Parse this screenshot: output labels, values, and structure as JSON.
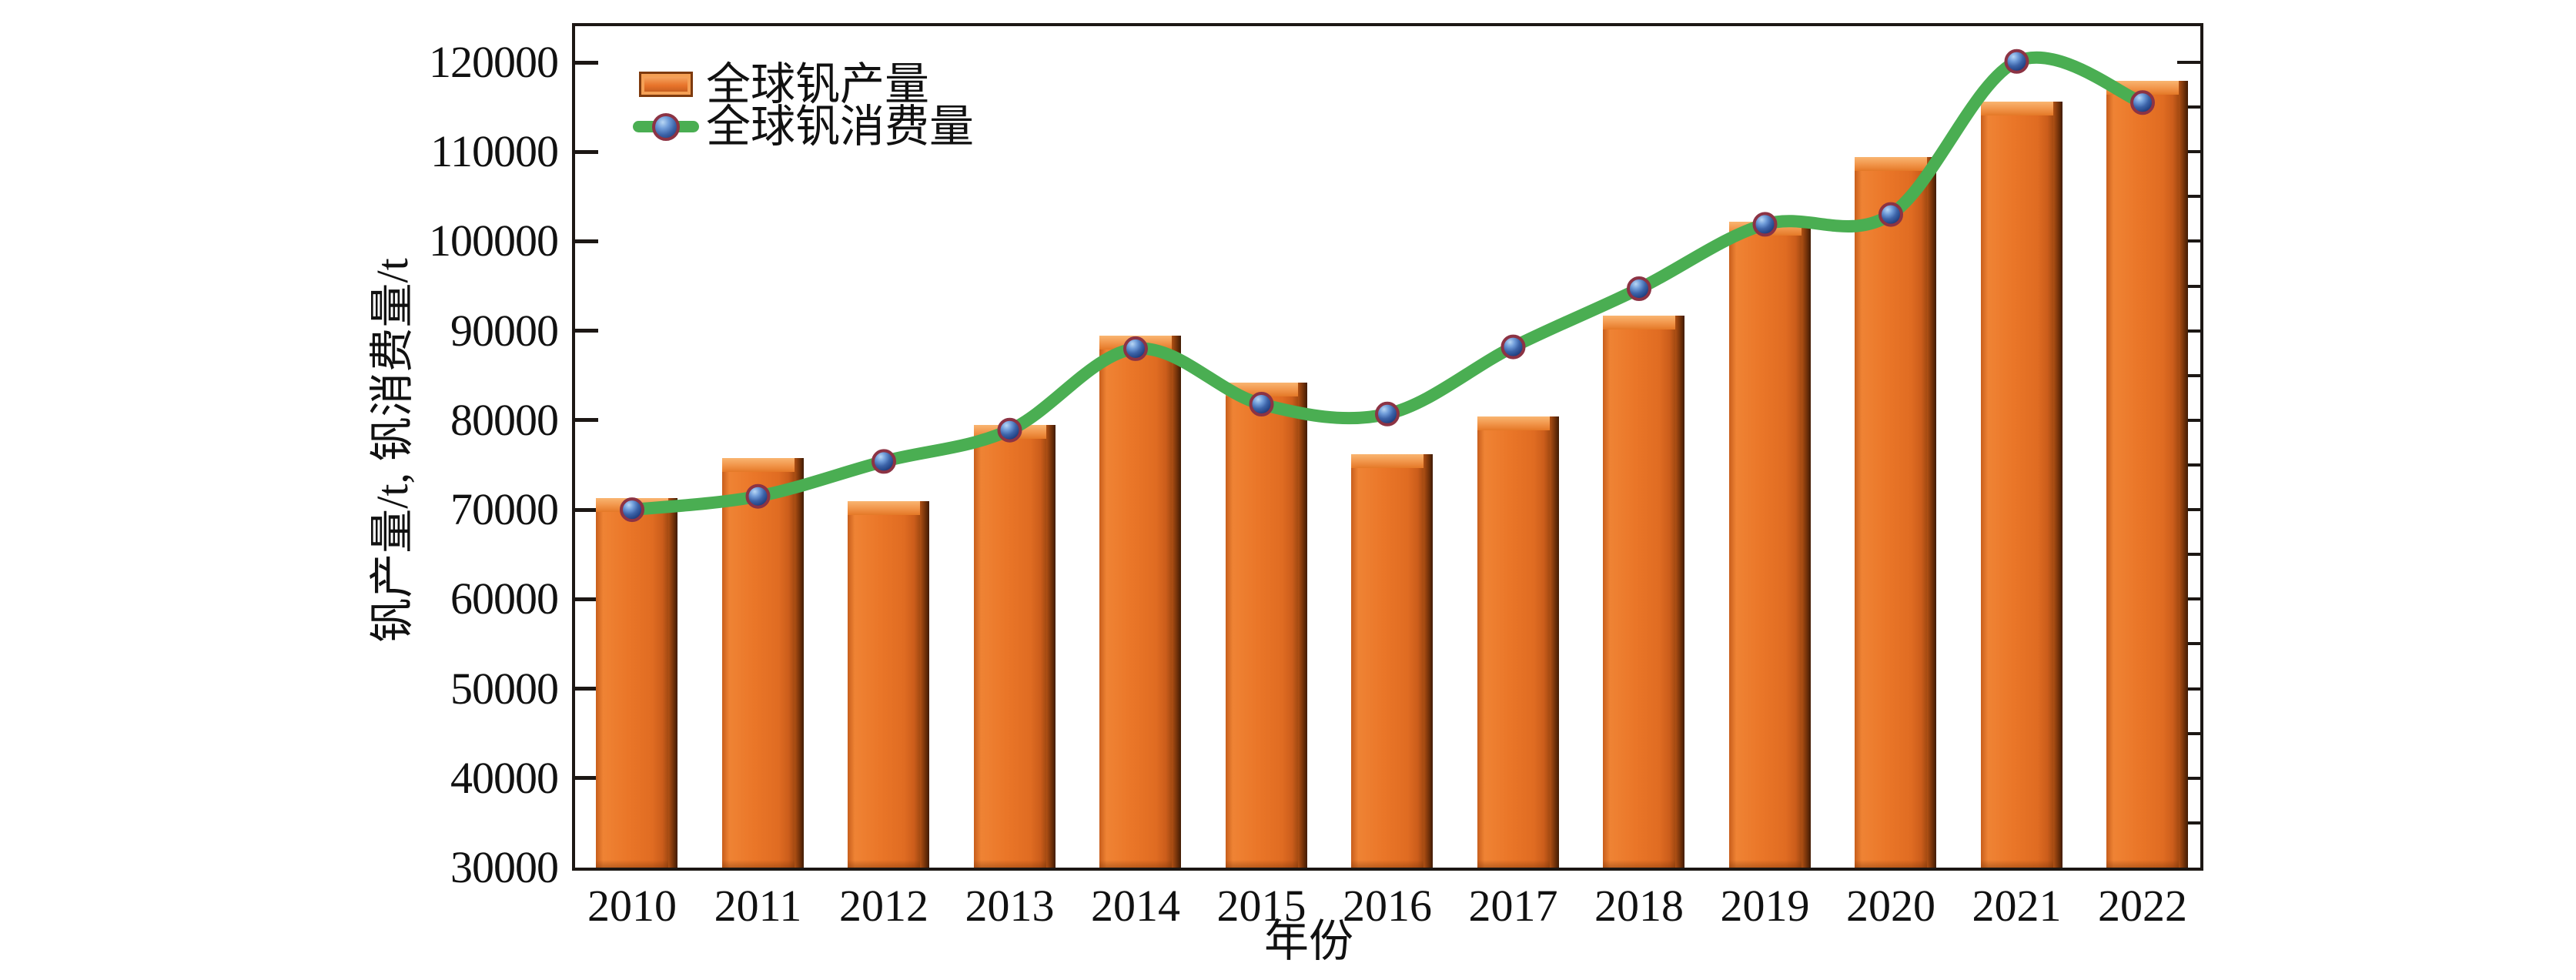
{
  "figure": {
    "kind": "combo-chart-figure",
    "background": "#ffffff"
  },
  "axes": {
    "y_title": "钒产量/t, 钒消费量/t",
    "x_title": "年份",
    "y_tick_labels": [
      "30000",
      "40000",
      "50000",
      "60000",
      "70000",
      "80000",
      "90000",
      "100000",
      "110000",
      "120000"
    ],
    "x_tick_labels": [
      "2010",
      "2011",
      "2012",
      "2013",
      "2014",
      "2015",
      "2016",
      "2017",
      "2018",
      "2019",
      "2020",
      "2021",
      "2022"
    ]
  },
  "legend": {
    "items": [
      {
        "label": "全球钒产量",
        "icon": "bar-swatch-icon"
      },
      {
        "label": "全球钒消费量",
        "icon": "line-marker-icon"
      }
    ]
  },
  "colors": {
    "bar_face": "#e8742b",
    "bar_highlight": "#f9b571",
    "bar_shadow": "#6f3009",
    "line": "#4aae52",
    "marker_blue": "#3c63a8",
    "marker_rim": "#8c3344",
    "axis": "#1c1714",
    "text": "#111111"
  },
  "chart_data": {
    "type": "bar",
    "subtype": "bar-and-line-combo",
    "categories": [
      "2010",
      "2011",
      "2012",
      "2013",
      "2014",
      "2015",
      "2016",
      "2017",
      "2018",
      "2019",
      "2020",
      "2021",
      "2022"
    ],
    "series": [
      {
        "name": "全球钒产量",
        "type": "bar",
        "color": "#e8742b",
        "values": [
          71300,
          75800,
          71000,
          79500,
          89500,
          84200,
          76200,
          80400,
          91700,
          102200,
          109400,
          115600,
          117900
        ]
      },
      {
        "name": "全球钒消费量",
        "type": "line",
        "color": "#4aae52",
        "marker": "sphere",
        "marker_color": "#3c63a8",
        "values": [
          70000,
          71500,
          75400,
          78900,
          88000,
          81800,
          80700,
          88200,
          94700,
          101900,
          103000,
          120100,
          115500
        ]
      }
    ],
    "xlabel": "年份",
    "ylabel": "钒产量/t, 钒消费量/t",
    "ylim": [
      30000,
      124700
    ],
    "ytick_step": 10000,
    "ytick_minor_step": 5000,
    "grid": false,
    "legend_position": "top-left"
  }
}
